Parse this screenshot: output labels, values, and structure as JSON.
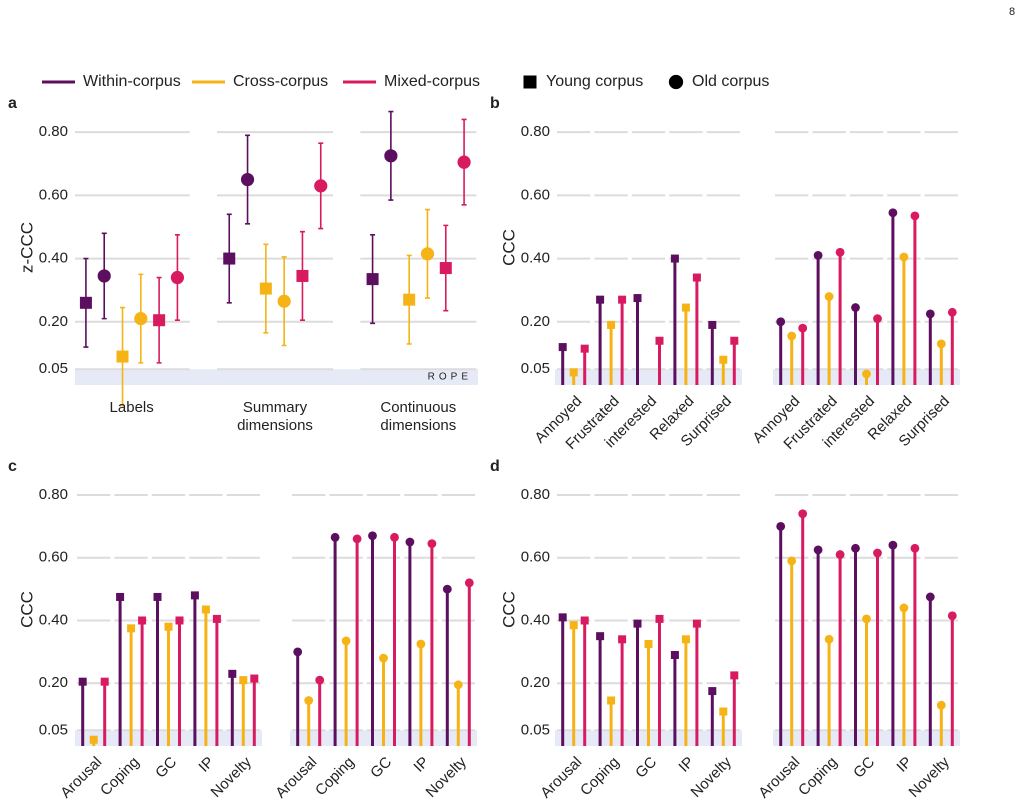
{
  "page_number": "8",
  "legend": {
    "series": [
      {
        "name": "Within-corpus",
        "color": "#5b0f5e"
      },
      {
        "name": "Cross-corpus",
        "color": "#f5b316"
      },
      {
        "name": "Mixed-corpus",
        "color": "#d81b60"
      }
    ],
    "markers": [
      {
        "name": "Young corpus",
        "shape": "square"
      },
      {
        "name": "Old corpus",
        "shape": "circle"
      }
    ]
  },
  "chart_data": [
    {
      "type": "errorbar",
      "label": "a",
      "ylabel": "z-CCC",
      "categories": [
        "Labels",
        "Summary dimensions",
        "Continuous dimensions"
      ],
      "ylim": [
        0,
        0.87
      ],
      "yticks": [
        {
          "value": 0.05,
          "label": "0.05"
        },
        {
          "value": 0.2,
          "label": "0.20"
        },
        {
          "value": 0.4,
          "label": "0.40"
        },
        {
          "value": 0.6,
          "label": "0.60"
        },
        {
          "value": 0.8,
          "label": "0.80"
        }
      ],
      "grid": true,
      "rope": [
        0,
        0.05
      ],
      "rope_label": "ROPE",
      "series": [
        {
          "values": [
            0.26,
            0.4,
            0.335
          ],
          "errors": [
            0.14,
            0.14,
            0.14
          ]
        },
        {
          "values": [
            0.345,
            0.65,
            0.725
          ],
          "errors": [
            0.135,
            0.14,
            0.14
          ]
        },
        {
          "values": [
            0.09,
            0.305,
            0.27
          ],
          "errors": [
            0.155,
            0.14,
            0.14
          ]
        },
        {
          "values": [
            0.21,
            0.265,
            0.415
          ],
          "errors": [
            0.14,
            0.14,
            0.14
          ]
        },
        {
          "values": [
            0.205,
            0.345,
            0.37
          ],
          "errors": [
            0.135,
            0.14,
            0.135
          ]
        },
        {
          "values": [
            0.34,
            0.63,
            0.705
          ],
          "errors": [
            0.135,
            0.135,
            0.135
          ]
        }
      ]
    },
    {
      "type": "lollipop",
      "label": "b",
      "ylabel": "CCC",
      "categories": [
        "Annoyed",
        "Frustrated",
        "interested",
        "Relaxed",
        "Surprised"
      ],
      "ylim": [
        0,
        0.87
      ],
      "yticks": [
        {
          "value": 0.05,
          "label": "0.05"
        },
        {
          "value": 0.2,
          "label": "0.20"
        },
        {
          "value": 0.4,
          "label": "0.40"
        },
        {
          "value": 0.6,
          "label": "0.60"
        },
        {
          "value": 0.8,
          "label": "0.80"
        }
      ],
      "grid": true,
      "rope": [
        0,
        0.05
      ],
      "panels": [
        {
          "series": [
            {
              "values": [
                0.12,
                0.27,
                0.275,
                0.4,
                0.19
              ]
            },
            {
              "values": [
                0.04,
                0.19,
                null,
                0.245,
                0.08
              ]
            },
            {
              "values": [
                0.115,
                0.27,
                0.14,
                0.34,
                0.14
              ]
            }
          ]
        },
        {
          "series": [
            {
              "values": [
                0.2,
                0.41,
                0.245,
                0.545,
                0.225
              ]
            },
            {
              "values": [
                0.155,
                0.28,
                0.035,
                0.405,
                0.13
              ]
            },
            {
              "values": [
                0.18,
                0.42,
                0.21,
                0.535,
                0.23
              ]
            }
          ]
        }
      ]
    },
    {
      "type": "lollipop",
      "label": "c",
      "ylabel": "CCC",
      "categories": [
        "Arousal",
        "Coping",
        "GC",
        "IP",
        "Novelty"
      ],
      "ylim": [
        0,
        0.87
      ],
      "yticks": [
        {
          "value": 0.05,
          "label": "0.05"
        },
        {
          "value": 0.2,
          "label": "0.20"
        },
        {
          "value": 0.4,
          "label": "0.40"
        },
        {
          "value": 0.6,
          "label": "0.60"
        },
        {
          "value": 0.8,
          "label": "0.80"
        }
      ],
      "grid": true,
      "rope": [
        0,
        0.05
      ],
      "panels": [
        {
          "series": [
            {
              "values": [
                0.205,
                0.475,
                0.475,
                0.48,
                0.23
              ]
            },
            {
              "values": [
                0.02,
                0.375,
                0.38,
                0.435,
                0.21
              ]
            },
            {
              "values": [
                0.205,
                0.4,
                0.4,
                0.405,
                0.215
              ]
            }
          ]
        },
        {
          "series": [
            {
              "values": [
                0.3,
                0.665,
                0.67,
                0.65,
                0.5
              ]
            },
            {
              "values": [
                0.145,
                0.335,
                0.28,
                0.325,
                0.195
              ]
            },
            {
              "values": [
                0.21,
                0.66,
                0.665,
                0.645,
                0.52
              ]
            }
          ]
        }
      ]
    },
    {
      "type": "lollipop",
      "label": "d",
      "ylabel": "CCC",
      "categories": [
        "Arousal",
        "Coping",
        "GC",
        "IP",
        "Novelty"
      ],
      "ylim": [
        0,
        0.87
      ],
      "yticks": [
        {
          "value": 0.05,
          "label": "0.05"
        },
        {
          "value": 0.2,
          "label": "0.20"
        },
        {
          "value": 0.4,
          "label": "0.40"
        },
        {
          "value": 0.6,
          "label": "0.60"
        },
        {
          "value": 0.8,
          "label": "0.80"
        }
      ],
      "grid": true,
      "rope": [
        0,
        0.05
      ],
      "panels": [
        {
          "series": [
            {
              "values": [
                0.41,
                0.35,
                0.39,
                0.29,
                0.175
              ]
            },
            {
              "values": [
                0.385,
                0.145,
                0.325,
                0.34,
                0.11
              ]
            },
            {
              "values": [
                0.4,
                0.34,
                0.405,
                0.39,
                0.225
              ]
            }
          ]
        },
        {
          "series": [
            {
              "values": [
                0.7,
                0.625,
                0.63,
                0.64,
                0.475
              ]
            },
            {
              "values": [
                0.59,
                0.34,
                0.405,
                0.44,
                0.13
              ]
            },
            {
              "values": [
                0.74,
                0.61,
                0.615,
                0.63,
                0.415
              ]
            }
          ]
        }
      ]
    }
  ]
}
